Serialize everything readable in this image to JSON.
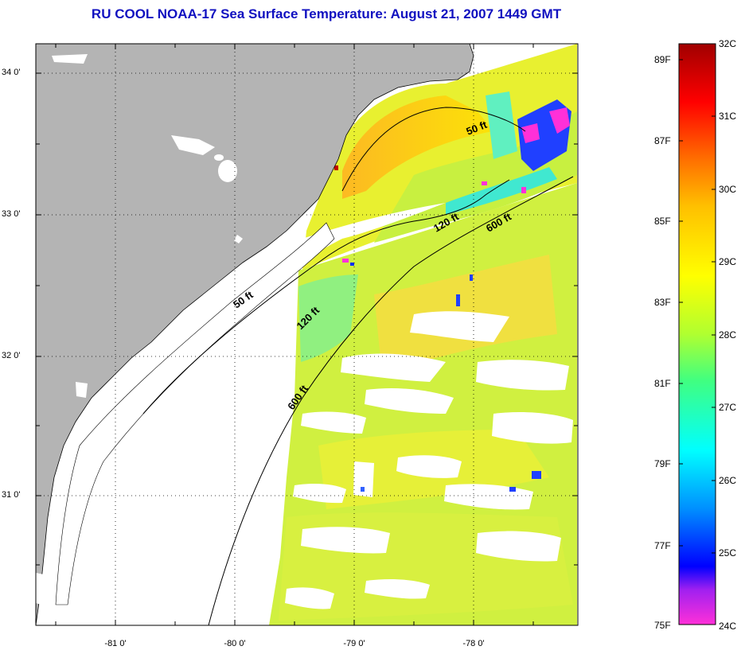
{
  "title": "RU COOL  NOAA-17  Sea Surface Temperature:  August 21, 2007 1449 GMT",
  "latitude_labels": [
    "34 0'",
    "33 0'",
    "32 0'",
    "31 0'"
  ],
  "longitude_labels": [
    "-81 0'",
    "-80 0'",
    "-79 0'",
    "-78 0'"
  ],
  "contour_labels": [
    "50 ft",
    "120 ft",
    "600 ft",
    "50 ft",
    "120 ft",
    "600 ft"
  ],
  "colorbar": {
    "fahrenheit_labels": [
      "89F",
      "87F",
      "85F",
      "83F",
      "81F",
      "79F",
      "77F",
      "75F"
    ],
    "celsius_labels": [
      "32C",
      "31C",
      "30C",
      "29C",
      "28C",
      "27C",
      "26C",
      "25C",
      "24C"
    ],
    "colors": [
      "#ff2ad2",
      "#a020f0",
      "#0000ff",
      "#0090ff",
      "#00ffff",
      "#40ff80",
      "#b0ff30",
      "#ffff00",
      "#ffc000",
      "#ff7000",
      "#ff0000",
      "#a00000"
    ]
  },
  "colors": {
    "land": "#b4b4b4",
    "no_data": "#ffffff",
    "title": "#1010c0"
  }
}
